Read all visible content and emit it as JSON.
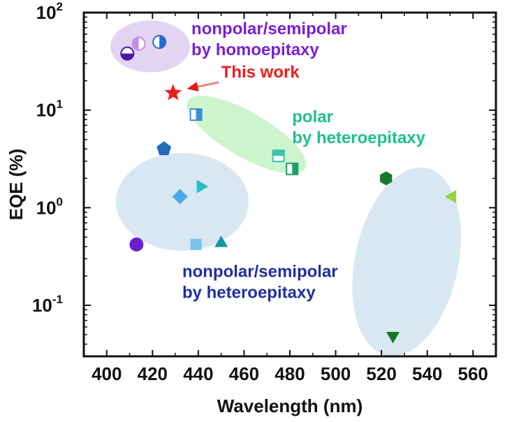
{
  "chart_data": {
    "type": "scatter",
    "title": "",
    "xlabel": "Wavelength (nm)",
    "ylabel": "EQE (%)",
    "xlim": [
      390,
      570
    ],
    "ylim": [
      0.03,
      100
    ],
    "yscale": "log",
    "x_ticks": [
      "400",
      "420",
      "440",
      "460",
      "480",
      "500",
      "520",
      "540",
      "560"
    ],
    "y_ticks": [
      {
        "base": "10",
        "exp": "-1",
        "value": 0.1
      },
      {
        "base": "10",
        "exp": "0",
        "value": 1
      },
      {
        "base": "10",
        "exp": "1",
        "value": 10
      },
      {
        "base": "10",
        "exp": "2",
        "value": 100
      }
    ],
    "grid": false,
    "points": [
      {
        "group": "nonpolar/semipolar by homoepitaxy",
        "x": 409,
        "y": 38,
        "marker": "circle-half-bottom",
        "color": "#4a1aa8"
      },
      {
        "group": "nonpolar/semipolar by homoepitaxy",
        "x": 414,
        "y": 48,
        "marker": "circle-half-left",
        "color": "#c98be8"
      },
      {
        "group": "nonpolar/semipolar by homoepitaxy",
        "x": 423,
        "y": 50,
        "marker": "circle-half-right",
        "color": "#2a6ad6"
      },
      {
        "group": "This work",
        "x": 429,
        "y": 15,
        "marker": "star",
        "color": "#ee1c1c"
      },
      {
        "group": "polar by heteroepitaxy",
        "x": 439,
        "y": 9,
        "marker": "square-half-right",
        "color": "#3b8fd0"
      },
      {
        "group": "polar by heteroepitaxy",
        "x": 475,
        "y": 3.4,
        "marker": "square-half-top",
        "color": "#37c4a8"
      },
      {
        "group": "polar by heteroepitaxy",
        "x": 481,
        "y": 2.5,
        "marker": "square-half-right",
        "color": "#1aa068"
      },
      {
        "group": "nonpolar/semipolar by heteroepitaxy",
        "x": 425,
        "y": 4,
        "marker": "pentagon",
        "color": "#1f6db8"
      },
      {
        "group": "nonpolar/semipolar by heteroepitaxy",
        "x": 441,
        "y": 1.65,
        "marker": "triangle-right",
        "color": "#22c0c4"
      },
      {
        "group": "nonpolar/semipolar by heteroepitaxy",
        "x": 432,
        "y": 1.3,
        "marker": "diamond",
        "color": "#4aa8ec"
      },
      {
        "group": "nonpolar/semipolar by heteroepitaxy",
        "x": 413,
        "y": 0.42,
        "marker": "circle",
        "color": "#6a1ed0"
      },
      {
        "group": "nonpolar/semipolar by heteroepitaxy",
        "x": 439,
        "y": 0.42,
        "marker": "square",
        "color": "#78c4f0"
      },
      {
        "group": "nonpolar/semipolar by heteroepitaxy",
        "x": 450,
        "y": 0.44,
        "marker": "triangle-up",
        "color": "#139aa0"
      },
      {
        "group": "green",
        "x": 522,
        "y": 2.0,
        "marker": "hexagon",
        "color": "#167a2e"
      },
      {
        "group": "green",
        "x": 551,
        "y": 1.3,
        "marker": "triangle-left",
        "color": "#96d442"
      },
      {
        "group": "green",
        "x": 525,
        "y": 0.048,
        "marker": "triangle-down",
        "color": "#117a1e"
      }
    ],
    "regions": [
      {
        "name": "homoepitaxy-region",
        "color": "#e3d4f4",
        "cx": 419,
        "cy": 45,
        "rx": 16,
        "ry": 15,
        "angle": 0
      },
      {
        "name": "polar-region",
        "color": "#cdf5cd",
        "cx": 461,
        "cy": 5.6,
        "rx": 30,
        "ry": 9,
        "angle": 30
      },
      {
        "name": "nonpolar-hetero-region",
        "color": "#d8e8f2",
        "cx": 433,
        "cy": 1.15,
        "rx": 23,
        "ry": 19,
        "angle": 0
      },
      {
        "name": "green-region",
        "color": "#d8e8f2",
        "cx": 531,
        "cy": 0.28,
        "rx": 23,
        "ry": 46,
        "angle": 12
      }
    ],
    "annotations": [
      {
        "text_lines": [
          "nonpolar/semipolar",
          "by homoepitaxy"
        ],
        "color": "#7a1fd2",
        "x": 437,
        "y": 60
      },
      {
        "text_lines": [
          "This work"
        ],
        "color": "#ee1c1c",
        "x": 450,
        "y": 21.5
      },
      {
        "text_lines": [
          "polar",
          "by heteroepitaxy"
        ],
        "color": "#1fc08e",
        "x": 481,
        "y": 7.5
      },
      {
        "text_lines": [
          "nonpolar/semipolar",
          "by heteroepitaxy"
        ],
        "color": "#1f2fa0",
        "x": 433,
        "y": 0.195
      }
    ],
    "arrow": {
      "color": "#f38080",
      "from": [
        449,
        19.3
      ],
      "to": [
        435,
        16.5
      ]
    }
  }
}
